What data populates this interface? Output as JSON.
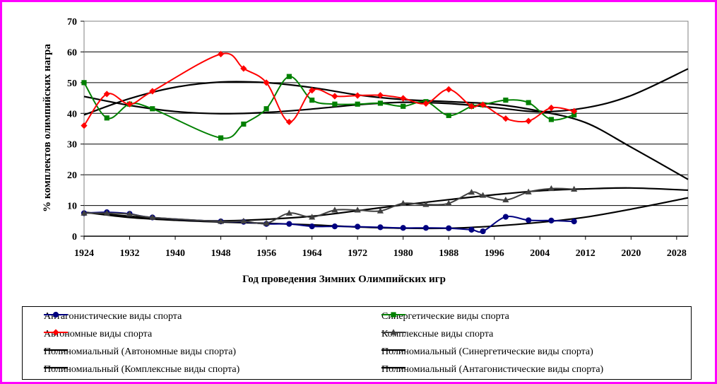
{
  "chart_data": {
    "type": "line",
    "title": "",
    "xlabel": "Год проведения Зимних Олимпийских игр",
    "ylabel": "% комплектов олимпийских награ",
    "xlim": [
      1924,
      2030
    ],
    "ylim": [
      0,
      70
    ],
    "xticks": [
      "1924",
      "1932",
      "1940",
      "1948",
      "1956",
      "1964",
      "1972",
      "1980",
      "1988",
      "1996",
      "2004",
      "2012",
      "2020",
      "2028"
    ],
    "yticks": [
      "0",
      "10",
      "20",
      "30",
      "40",
      "50",
      "60",
      "70"
    ],
    "grid": "horizontal",
    "legend_position": "bottom",
    "series": [
      {
        "name": "Антагонистические виды спорта",
        "color": "#000080",
        "marker": "circle",
        "x": [
          1924,
          1928,
          1932,
          1936,
          1948,
          1952,
          1956,
          1960,
          1964,
          1968,
          1972,
          1976,
          1980,
          1984,
          1988,
          1992,
          1994,
          1998,
          2002,
          2006,
          2010
        ],
        "y": [
          7.5,
          7.8,
          7.3,
          6.1,
          4.8,
          4.7,
          4.0,
          4.0,
          3.2,
          3.2,
          3.1,
          2.9,
          2.7,
          2.7,
          2.6,
          2.1,
          1.6,
          6.3,
          5.2,
          5.1,
          4.8
        ]
      },
      {
        "name": "Синергетические виды спорта",
        "color": "#008000",
        "marker": "square",
        "x": [
          1924,
          1928,
          1932,
          1936,
          1948,
          1952,
          1956,
          1960,
          1964,
          1968,
          1972,
          1976,
          1980,
          1984,
          1988,
          1992,
          1994,
          1998,
          2002,
          2006,
          2010
        ],
        "y": [
          50,
          38.5,
          43,
          41.5,
          32,
          36.5,
          41.5,
          52,
          44.3,
          43,
          43,
          43.3,
          42.3,
          43.8,
          39.3,
          42.3,
          42.8,
          44.3,
          43.5,
          38,
          39.5
        ]
      },
      {
        "name": "Автономные виды спорта",
        "color": "#ff0000",
        "marker": "diamond",
        "x": [
          1924,
          1928,
          1932,
          1936,
          1948,
          1952,
          1956,
          1960,
          1964,
          1968,
          1972,
          1976,
          1980,
          1984,
          1988,
          1992,
          1994,
          1998,
          2002,
          2006,
          2010
        ],
        "y": [
          36,
          46.3,
          43,
          47.2,
          59.3,
          54.6,
          50,
          37.2,
          47.5,
          45.6,
          45.8,
          45.9,
          44.9,
          43.2,
          47.8,
          42.3,
          42.8,
          38.3,
          37.5,
          41.8,
          40.7
        ]
      },
      {
        "name": "Комплексные виды спорта",
        "color": "#404040",
        "marker": "triangle",
        "x": [
          1924,
          1928,
          1932,
          1936,
          1948,
          1952,
          1956,
          1960,
          1964,
          1968,
          1972,
          1976,
          1980,
          1984,
          1988,
          1992,
          1994,
          1998,
          2002,
          2006,
          2010
        ],
        "y": [
          7.5,
          7.5,
          7.2,
          6.1,
          4.8,
          4.9,
          4.2,
          7.5,
          6.2,
          8.5,
          8.5,
          8.2,
          10.7,
          10.3,
          10.7,
          14.3,
          13.3,
          11.8,
          14.4,
          15.5,
          15.3
        ]
      },
      {
        "name": "Полиномиальный (Автономные виды спорта)",
        "color": "#000000",
        "trend": true,
        "x": [
          1924,
          1932,
          1940,
          1948,
          1956,
          1964,
          1972,
          1980,
          1988,
          1996,
          2004,
          2012,
          2020,
          2030
        ],
        "y": [
          39.5,
          44.8,
          48.5,
          50.2,
          50.0,
          48.4,
          46.0,
          44.5,
          43.8,
          43.0,
          40.7,
          37.0,
          29.0,
          18.5
        ]
      },
      {
        "name": "Полиномиальный (Синергетические виды спорта)",
        "color": "#000000",
        "trend": true,
        "x": [
          1924,
          1932,
          1940,
          1948,
          1956,
          1964,
          1972,
          1980,
          1988,
          1996,
          2004,
          2012,
          2020,
          2030
        ],
        "y": [
          45.5,
          42.6,
          40.6,
          39.9,
          40.3,
          41.4,
          42.8,
          43.6,
          43.2,
          41.9,
          40.5,
          41.8,
          45.8,
          54.5
        ]
      },
      {
        "name": "Полиномиальный (Комплексные виды спорта)",
        "color": "#000000",
        "trend": true,
        "x": [
          1924,
          1932,
          1940,
          1948,
          1956,
          1964,
          1972,
          1980,
          1988,
          1996,
          2004,
          2012,
          2020,
          2030
        ],
        "y": [
          7.8,
          6.5,
          5.4,
          5.0,
          5.5,
          6.5,
          8.3,
          10.2,
          11.9,
          13.5,
          14.8,
          15.4,
          15.7,
          15.0
        ]
      },
      {
        "name": "Полиномиальный (Антагонистические виды спорта)",
        "color": "#000000",
        "trend": true,
        "x": [
          1924,
          1932,
          1940,
          1948,
          1956,
          1964,
          1972,
          1980,
          1988,
          1996,
          2004,
          2012,
          2020,
          2030
        ],
        "y": [
          7.8,
          6.1,
          5.2,
          4.6,
          4.2,
          3.7,
          3.0,
          2.6,
          2.6,
          3.3,
          4.5,
          6.2,
          8.8,
          12.5
        ]
      }
    ]
  }
}
